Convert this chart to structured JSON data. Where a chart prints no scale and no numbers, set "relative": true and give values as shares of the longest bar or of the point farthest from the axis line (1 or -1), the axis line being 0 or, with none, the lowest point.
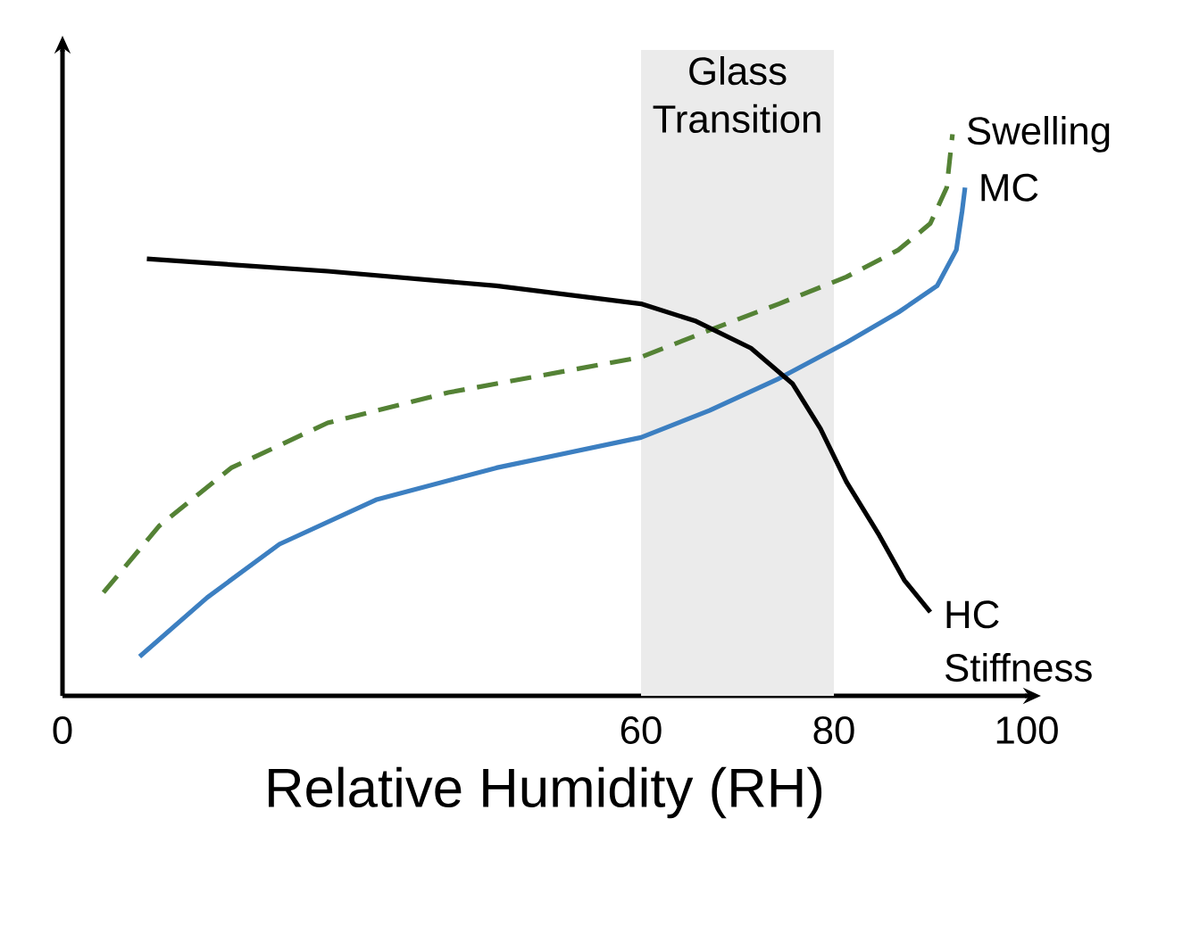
{
  "chart_data": {
    "type": "line",
    "relative": true,
    "xlabel": "Relative Humidity (RH)",
    "xlim": [
      0,
      100
    ],
    "xticks": [
      0,
      60,
      80,
      100
    ],
    "grid": false,
    "bands": [
      {
        "axis": "x",
        "from": 60,
        "to": 80,
        "label": "Glass Transition",
        "color": "#ebebeb"
      }
    ],
    "series": [
      {
        "name": "Swelling",
        "color": "#548235",
        "line_style": "dashed",
        "x": [
          4.25,
          10,
          17.5,
          27.5,
          40,
          60,
          67.1,
          74.3,
          81.3,
          86.7,
          90,
          91.7,
          92.3
        ],
        "values": [
          0.184,
          0.302,
          0.406,
          0.486,
          0.54,
          0.603,
          0.651,
          0.698,
          0.746,
          0.794,
          0.841,
          0.905,
          1
        ]
      },
      {
        "name": "MC",
        "color": "#3c7fc1",
        "line_style": "solid",
        "x": [
          8,
          15,
          22.5,
          32.5,
          45,
          60,
          67.1,
          74.3,
          81.3,
          86.7,
          90.7,
          92.7,
          93.3,
          93.6
        ],
        "values": [
          0.07,
          0.175,
          0.27,
          0.349,
          0.406,
          0.46,
          0.508,
          0.565,
          0.629,
          0.683,
          0.73,
          0.794,
          0.863,
          0.905
        ]
      },
      {
        "name": "HC Stiffness",
        "color": "#000000",
        "line_style": "solid",
        "x": [
          8.75,
          27.5,
          45,
          60,
          65.7,
          71.4,
          75.7,
          78.6,
          81.3,
          84.7,
          87.3,
          90
        ],
        "values": [
          0.778,
          0.756,
          0.73,
          0.698,
          0.667,
          0.619,
          0.556,
          0.476,
          0.381,
          0.286,
          0.206,
          0.149
        ]
      }
    ]
  }
}
